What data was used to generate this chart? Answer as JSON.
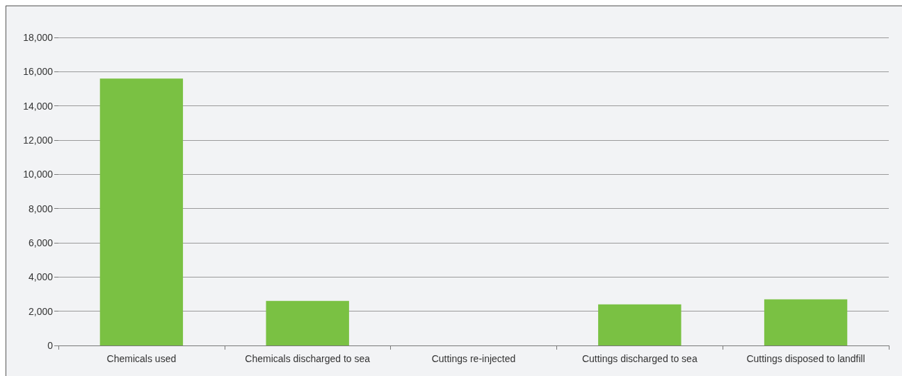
{
  "chart_data": {
    "type": "bar",
    "categories": [
      "Chemicals used",
      "Chemicals discharged to sea",
      "Cuttings re-injected",
      "Cuttings discharged to sea",
      "Cuttings disposed to landfill"
    ],
    "values": [
      15600,
      2600,
      0,
      2400,
      2700
    ],
    "color": "#7ac143",
    "ylim": [
      0,
      18000
    ],
    "yticks": [
      0,
      {
        "value": 2000,
        "label": "2,000"
      },
      {
        "value": 4000,
        "label": "4,000"
      },
      {
        "value": 6000,
        "label": "6,000"
      },
      {
        "value": 8000,
        "label": "8,000"
      },
      {
        "value": 10000,
        "label": "10,000"
      },
      {
        "value": 12000,
        "label": "12,000"
      },
      {
        "value": 14000,
        "label": "14,000"
      },
      {
        "value": 16000,
        "label": "16,000"
      },
      {
        "value": 18000,
        "label": "18,000"
      }
    ],
    "grid": "y"
  }
}
